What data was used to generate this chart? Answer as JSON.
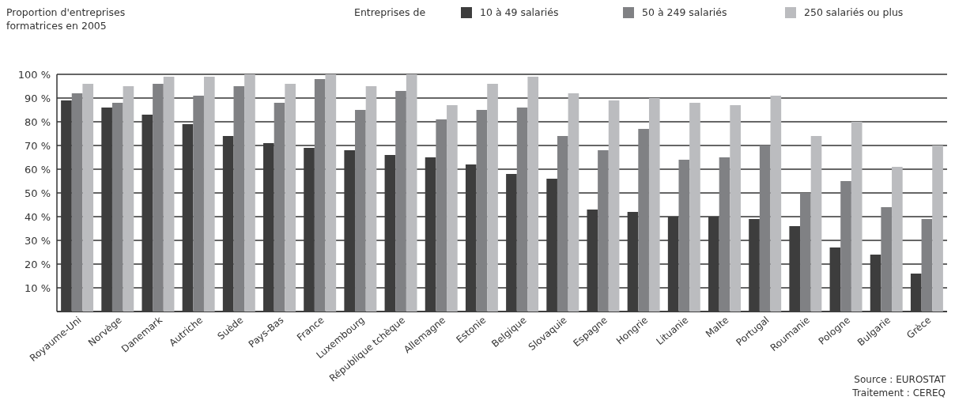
{
  "chart_data": {
    "type": "bar",
    "title": "Proportion d'entreprises formatrices en 2005",
    "legend_title": "Entreprises de",
    "categories": [
      "Royaume-Uni",
      "Norvège",
      "Danemark",
      "Autriche",
      "Suède",
      "Pays-Bas",
      "France",
      "Luxembourg",
      "République tchèque",
      "Allemagne",
      "Estonie",
      "Belgique",
      "Slovaquie",
      "Espagne",
      "Hongrie",
      "Lituanie",
      "Malte",
      "Portugal",
      "Roumanie",
      "Pologne",
      "Bulgarie",
      "Grèce"
    ],
    "series": [
      {
        "name": "10 à 49 salariés",
        "color": "#3d3d3d",
        "values": [
          89,
          86,
          83,
          79,
          74,
          71,
          69,
          68,
          66,
          65,
          62,
          58,
          56,
          43,
          42,
          40,
          40,
          39,
          36,
          27,
          24,
          16
        ]
      },
      {
        "name": "50 à 249 salariés",
        "color": "#808184",
        "values": [
          92,
          88,
          96,
          91,
          95,
          88,
          98,
          85,
          93,
          81,
          85,
          86,
          74,
          68,
          77,
          64,
          65,
          70,
          50,
          55,
          44,
          39
        ]
      },
      {
        "name": "250 salariés ou plus",
        "color": "#bbbcbf",
        "values": [
          96,
          95,
          99,
          99,
          100,
          96,
          100,
          95,
          100,
          87,
          96,
          99,
          92,
          89,
          90,
          88,
          87,
          91,
          74,
          80,
          61,
          70
        ]
      }
    ],
    "ylim": [
      0,
      100
    ],
    "yticks": [
      {
        "value": 0,
        "label": null
      },
      {
        "value": 10,
        "label": "10 %"
      },
      {
        "value": 20,
        "label": "20 %"
      },
      {
        "value": 30,
        "label": "30 %"
      },
      {
        "value": 40,
        "label": "40 %"
      },
      {
        "value": 50,
        "label": "50 %"
      },
      {
        "value": 60,
        "label": "60 %"
      },
      {
        "value": 70,
        "label": "70 %"
      },
      {
        "value": 80,
        "label": "80 %"
      },
      {
        "value": 90,
        "label": "90 %"
      },
      {
        "value": 100,
        "label": "100 %"
      }
    ],
    "grid": "y",
    "legend": "top right",
    "annotations": [
      "Source : EUROSTAT",
      "Traitement : CEREQ"
    ]
  }
}
